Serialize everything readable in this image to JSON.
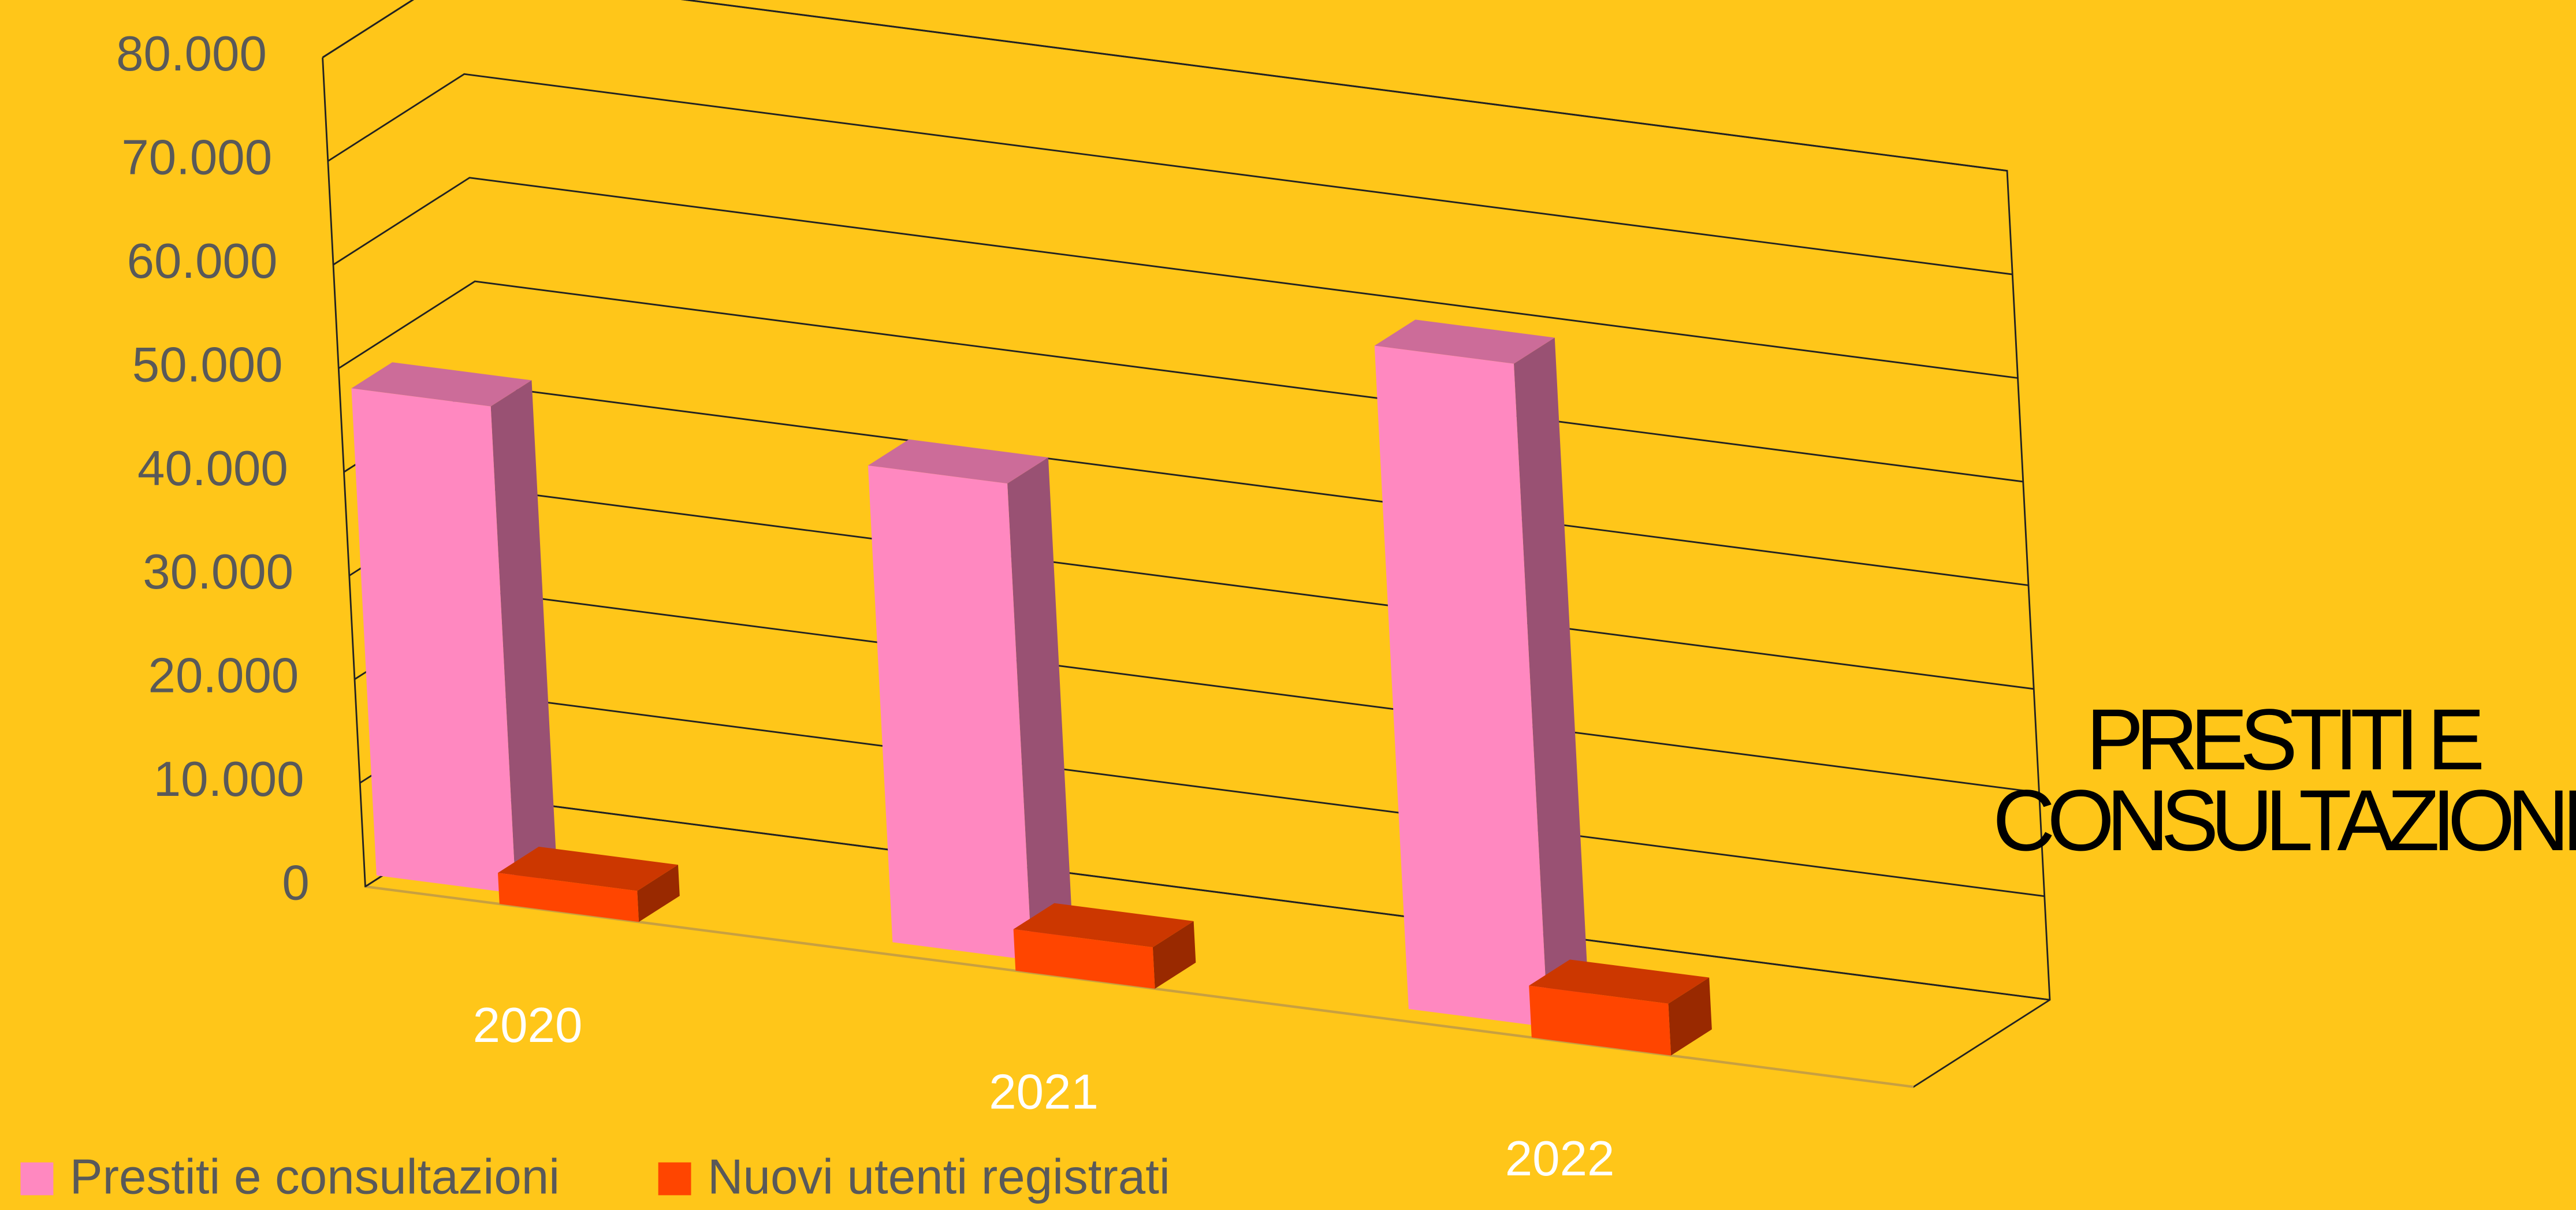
{
  "chart_data": {
    "type": "bar3d",
    "title": "PRESTITI E CONSULTAZIONI",
    "categories": [
      "2020",
      "2021",
      "2022"
    ],
    "series": [
      {
        "name": "Prestiti e consultazioni",
        "color": "#ff88c0",
        "values": [
          47000,
          46000,
          64000
        ]
      },
      {
        "name": "Nuovi utenti registrati",
        "color": "#ff4500",
        "values": [
          3000,
          4000,
          5000
        ]
      }
    ],
    "ylim": [
      0,
      80000
    ],
    "yticks": [
      0,
      {
        "value": 10000,
        "label": "10.000"
      },
      {
        "value": 20000,
        "label": "20.000"
      },
      {
        "value": 30000,
        "label": "30.000"
      },
      {
        "value": 40000,
        "label": "40.000"
      },
      {
        "value": 50000,
        "label": "50.000"
      },
      {
        "value": 60000,
        "label": "60.000"
      },
      {
        "value": 70000,
        "label": "70.000"
      },
      {
        "value": 80000,
        "label": "80.000"
      }
    ],
    "grid": true,
    "legend": "bottom"
  }
}
